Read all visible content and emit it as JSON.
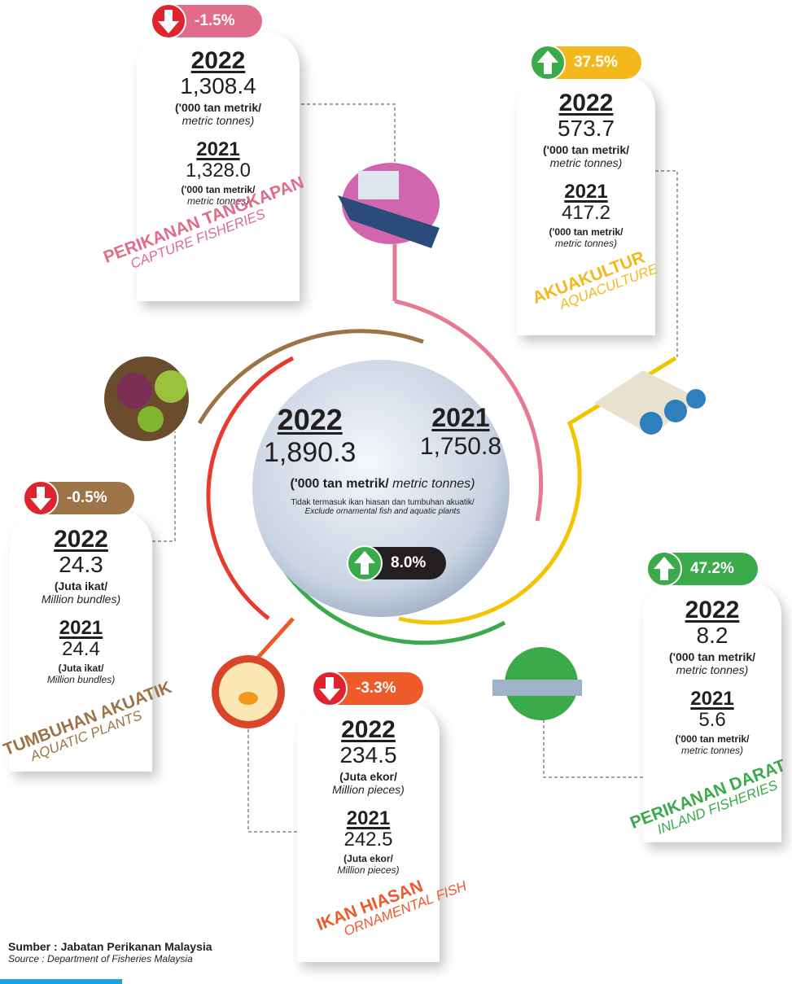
{
  "center": {
    "year_a": "2022",
    "value_a": "1,890.3",
    "year_b": "2021",
    "value_b": "1,750.8",
    "unit_ms": "('000 tan metrik/",
    "unit_en": "metric tonnes)",
    "note_ms": "Tidak termasuk ikan hiasan dan tumbuhan akuatik/",
    "note_en": "Exclude ornamental fish and aquatic plants",
    "change": "8.0%",
    "direction": "up"
  },
  "cards": [
    {
      "change": "-1.5%",
      "direction": "down",
      "color": "#e06b8b",
      "year_a": "2022",
      "value_a": "1,308.4",
      "unit_a_ms": "('000 tan metrik/",
      "unit_a_en": "metric tonnes)",
      "year_b": "2021",
      "value_b": "1,328.0",
      "unit_b_ms": "('000 tan metrik/",
      "unit_b_en": "metric tonnes)",
      "label_ms": "PERIKANAN TANGKAPAN",
      "label_en": "CAPTURE FISHERIES"
    },
    {
      "change": "37.5%",
      "direction": "up",
      "color": "#f5b81c",
      "year_a": "2022",
      "value_a": "573.7",
      "unit_a_ms": "('000 tan metrik/",
      "unit_a_en": "metric tonnes)",
      "year_b": "2021",
      "value_b": "417.2",
      "unit_b_ms": "('000 tan metrik/",
      "unit_b_en": "metric tonnes)",
      "label_ms": "AKUAKULTUR",
      "label_en": "AQUACULTURE"
    },
    {
      "change": "-0.5%",
      "direction": "down",
      "color": "#9c7447",
      "year_a": "2022",
      "value_a": "24.3",
      "unit_a_ms": "(Juta ikat/",
      "unit_a_en": "Million bundles)",
      "year_b": "2021",
      "value_b": "24.4",
      "unit_b_ms": "(Juta ikat/",
      "unit_b_en": "Million bundles)",
      "label_ms": "TUMBUHAN AKUATIK",
      "label_en": "AQUATIC PLANTS"
    },
    {
      "change": "-3.3%",
      "direction": "down",
      "color": "#ee5a2a",
      "year_a": "2022",
      "value_a": "234.5",
      "unit_a_ms": "(Juta ekor/",
      "unit_a_en": "Million pieces)",
      "year_b": "2021",
      "value_b": "242.5",
      "unit_b_ms": "(Juta ekor/",
      "unit_b_en": "Million pieces)",
      "label_ms": "IKAN HIASAN",
      "label_en": "ORNAMENTAL FISH"
    },
    {
      "change": "47.2%",
      "direction": "up",
      "color": "#3aaa4a",
      "year_a": "2022",
      "value_a": "8.2",
      "unit_a_ms": "('000 tan metrik/",
      "unit_a_en": "metric tonnes)",
      "year_b": "2021",
      "value_b": "5.6",
      "unit_b_ms": "('000 tan metrik/",
      "unit_b_en": "metric tonnes)",
      "label_ms": "PERIKANAN DARAT",
      "label_en": "INLAND FISHERIES"
    }
  ],
  "source": {
    "ms": "Sumber : Jabatan Perikanan Malaysia",
    "en": "Source : Department of Fisheries Malaysia"
  }
}
